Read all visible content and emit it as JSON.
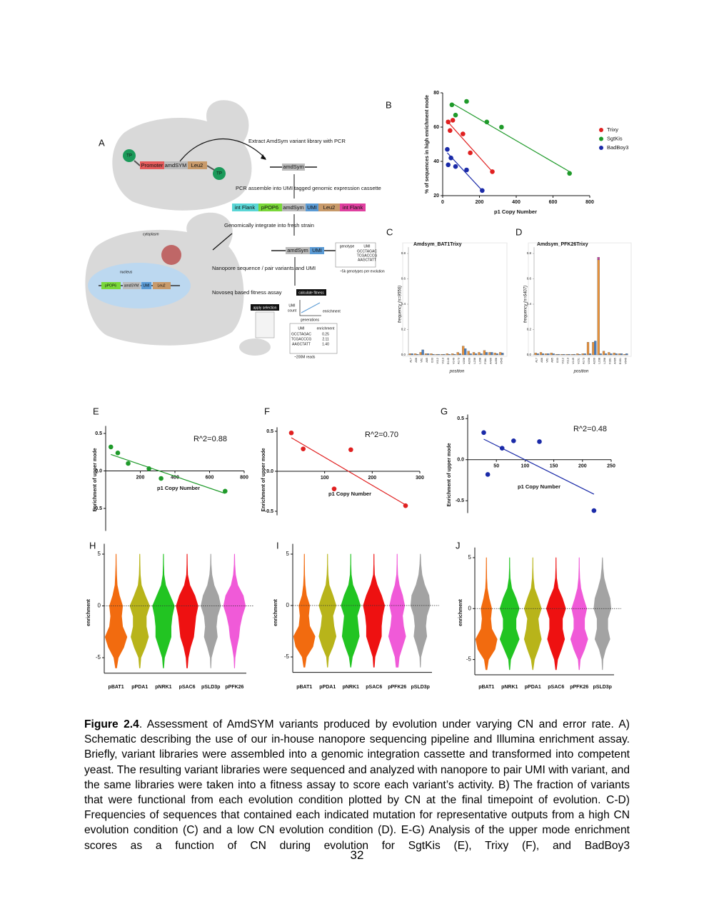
{
  "schematic": {
    "panel": "A",
    "extract": "Extract AmdSym variant library with PCR",
    "tp": "TP",
    "promoter": "Promoter",
    "amdsym": "amdSYM",
    "leu2": "Leu2",
    "amdsym_product": "amdSym",
    "pcr_assemble": "PCR assemble into UMI tagged genomic expression cassette",
    "cassette": [
      "int Flank",
      "pPOP6",
      "amdSym",
      "UMI",
      "Leu2",
      "int Flank"
    ],
    "integrate": "Genomically integrate into fresh strain",
    "cytoplasm": "cytoplasm",
    "nucleus": "nucleus",
    "nuclear_cassette": [
      "pPOP6",
      "amdSYM",
      "UMI",
      "Leu2"
    ],
    "pair": [
      "amdSym",
      "UMI"
    ],
    "genotype_table": {
      "headers": [
        "genotype",
        "UMI"
      ],
      "umis": [
        "GCCTAGAC",
        "TCGACCCG",
        "AAGCTATT"
      ]
    },
    "genotypes_note": "~5k genotypes per evolution",
    "nanopore": "Nanopore sequence / pair variants and UMI",
    "novoseq": "Novoseq based fitness assay",
    "calculate": "calculate fitness",
    "apply": "apply selection",
    "umi_count": [
      "UMI",
      "count"
    ],
    "generations": "generations",
    "enrichment": "enrichment",
    "fitness_table": {
      "headers": [
        "UMI",
        "enrichment"
      ],
      "rows": [
        [
          "GCCTAGAC",
          "0.25"
        ],
        [
          "TCGACCCG",
          "2.11"
        ],
        [
          "AAGCTATT",
          "1.40"
        ]
      ]
    },
    "reads": "~200M reads"
  },
  "chart_data": [
    {
      "type": "scatter",
      "panel": "B",
      "xlabel": "p1 Copy Number",
      "ylabel": "% of sequences in high enrichment mode",
      "xlim": [
        0,
        800
      ],
      "ylim": [
        20,
        80
      ],
      "xticks": [
        0,
        200,
        400,
        600,
        800
      ],
      "yticks": [
        20,
        40,
        60,
        80
      ],
      "legend": "right",
      "series": [
        {
          "name": "Trixy",
          "color": "#e02020",
          "x": [
            30,
            40,
            55,
            110,
            150,
            270
          ],
          "values": [
            63,
            58,
            64,
            56,
            45,
            34
          ],
          "fit": {
            "x": [
              20,
              270
            ],
            "y": [
              64,
              34
            ]
          }
        },
        {
          "name": "SgtKis",
          "color": "#1f9a2a",
          "x": [
            50,
            70,
            130,
            240,
            320,
            690
          ],
          "values": [
            73,
            67,
            75,
            63,
            60,
            33
          ],
          "fit": {
            "x": [
              50,
              690
            ],
            "y": [
              74,
              34
            ]
          }
        },
        {
          "name": "BadBoy3",
          "color": "#1a2aa8",
          "x": [
            25,
            30,
            45,
            70,
            130,
            215
          ],
          "values": [
            47,
            38,
            42,
            37,
            35,
            23
          ],
          "fit": {
            "x": [
              25,
              215
            ],
            "y": [
              45,
              23
            ]
          }
        }
      ]
    },
    {
      "type": "bar",
      "panel": "C",
      "title": "Amdsym_BAT1Trixy",
      "ylabel": "frequency (n=9556)",
      "xlabel": "position",
      "ylim": [
        0,
        0.85
      ],
      "yticks": [
        {
          "value": 0,
          "label": "0.0"
        },
        0.2,
        0.4,
        0.6,
        0.8
      ],
      "categories": [
        "A17",
        "A56",
        "V61",
        "A65",
        "I103",
        "V112",
        "V113",
        "D145",
        "V149",
        "A173",
        "V208",
        "A209",
        "L238",
        "L298",
        "F281",
        "A495",
        "A496",
        "V545"
      ],
      "series": [
        {
          "color": "#e8913a",
          "values": [
            0.01,
            0.01,
            0.02,
            0.01,
            0.01,
            0.005,
            0.005,
            0.01,
            0.01,
            0.02,
            0.07,
            0.03,
            0.02,
            0.02,
            0.035,
            0.02,
            0.015,
            0.02
          ]
        },
        {
          "color": "#4a7fc1",
          "values": [
            0.01,
            0.005,
            0.04,
            0.01,
            0.005,
            0.005,
            0.005,
            0.005,
            0.005,
            0.01,
            0.05,
            0.01,
            0.01,
            0.01,
            0.02,
            0.02,
            0.01,
            0.015
          ]
        }
      ]
    },
    {
      "type": "bar",
      "panel": "D",
      "title": "Amdsym_PFK26Trixy",
      "ylabel": "frequency (n=6407)",
      "xlabel": "position",
      "ylim": [
        0,
        0.85
      ],
      "yticks": [
        {
          "value": 0,
          "label": "0.0"
        },
        0.2,
        0.4,
        0.6,
        0.8
      ],
      "categories": [
        "A17",
        "A56",
        "V61",
        "A65",
        "I103",
        "V112",
        "V113",
        "V149",
        "V151",
        "A173",
        "V208",
        "A209",
        "L238",
        "L298",
        "F281",
        "A495",
        "E491",
        "V545"
      ],
      "series": [
        {
          "color": "#e8913a",
          "values": [
            0.015,
            0.02,
            0.01,
            0.015,
            0.005,
            0.005,
            0.005,
            0.005,
            0.01,
            0.01,
            0.1,
            0.1,
            0.75,
            0.03,
            0.02,
            0.015,
            0.01,
            0.005
          ]
        },
        {
          "color": "#4a7fc1",
          "values": [
            0.01,
            0.01,
            0.01,
            0.01,
            0.005,
            0.005,
            0.005,
            0.005,
            0.005,
            0.01,
            0.01,
            0.11,
            0.01,
            0.01,
            0.01,
            0.01,
            0.01,
            0.01
          ]
        },
        {
          "color": "#c040a0",
          "stacked_on": 0,
          "values": [
            null,
            null,
            null,
            null,
            null,
            null,
            null,
            null,
            null,
            null,
            null,
            null,
            0.02,
            null,
            null,
            null,
            null,
            null
          ]
        }
      ]
    },
    {
      "type": "scatter",
      "panel": "E",
      "annotation": "R^2=0.88",
      "xlabel": "p1 Copy Number",
      "ylabel": "Enrichment of upper mode",
      "axes_cross_at_zero": true,
      "xlim": [
        0,
        800
      ],
      "ylim": [
        -0.8,
        0.6
      ],
      "xticks": [
        200,
        400,
        600,
        800
      ],
      "yticks": [
        -0.5,
        {
          "value": 0,
          "label": "0.0"
        },
        0.5
      ],
      "series": [
        {
          "color": "#1f9a2a",
          "x": [
            30,
            70,
            130,
            250,
            320,
            690
          ],
          "values": [
            0.32,
            0.24,
            0.1,
            0.03,
            -0.1,
            -0.27
          ],
          "fit": {
            "x": [
              30,
              690
            ],
            "y": [
              0.22,
              -0.3
            ]
          }
        }
      ]
    },
    {
      "type": "scatter",
      "panel": "F",
      "annotation": "R^2=0.70",
      "xlabel": "p1 Copy Number",
      "ylabel": "Enrichment of upper mode",
      "axes_cross_at_zero": true,
      "xlim": [
        0,
        300
      ],
      "ylim": [
        -0.55,
        0.55
      ],
      "xticks": [
        100,
        200,
        300
      ],
      "yticks": [
        -0.5,
        {
          "value": 0,
          "label": "0.0"
        },
        0.5
      ],
      "series": [
        {
          "color": "#e02020",
          "x": [
            30,
            55,
            155,
            120,
            270
          ],
          "values": [
            0.48,
            0.28,
            0.27,
            -0.22,
            -0.43
          ],
          "fit": {
            "x": [
              30,
              270
            ],
            "y": [
              0.42,
              -0.42
            ]
          }
        }
      ]
    },
    {
      "type": "scatter",
      "panel": "G",
      "annotation": "R^2=0.48",
      "xlabel": "p1 Copy Number",
      "ylabel": "Enrichment of upper mode",
      "axes_cross_at_zero": true,
      "xlim": [
        0,
        250
      ],
      "ylim": [
        -0.65,
        0.55
      ],
      "xticks": [
        50,
        100,
        150,
        200,
        250
      ],
      "yticks": [
        -0.5,
        {
          "value": 0,
          "label": "0.0"
        },
        0.5
      ],
      "series": [
        {
          "color": "#1a2aa8",
          "x": [
            28,
            35,
            60,
            80,
            125,
            220
          ],
          "values": [
            0.33,
            -0.18,
            0.14,
            0.23,
            0.22,
            -0.62
          ],
          "fit": {
            "x": [
              28,
              220
            ],
            "y": [
              0.25,
              -0.42
            ]
          }
        }
      ]
    },
    {
      "type": "violin",
      "panel": "H",
      "ylabel": "enrichment",
      "ylim": [
        -6.5,
        6
      ],
      "yticks": [
        -5,
        0,
        5
      ],
      "zero_line": true,
      "levels": [
        -6,
        -5,
        -4,
        -3,
        -2,
        -1,
        0,
        1,
        2,
        3,
        4,
        5
      ],
      "categories": [
        "pBAT1",
        "pPDA1",
        "pNRK1",
        "pSAC6",
        "pSLD3p",
        "pPFK26"
      ],
      "colors": [
        "#f26b0f",
        "#b8b41a",
        "#22c422",
        "#ee1111",
        "#a3a3a3",
        "#f05ad8"
      ],
      "density": [
        [
          0.05,
          0.2,
          0.7,
          1,
          0.6,
          0.5,
          0.6,
          0.3,
          0.1,
          0.05,
          0.02,
          0.01
        ],
        [
          0.02,
          0.1,
          0.5,
          0.8,
          0.6,
          0.6,
          0.9,
          0.5,
          0.15,
          0.05,
          0.02,
          0.01
        ],
        [
          0.02,
          0.1,
          0.4,
          0.7,
          0.7,
          0.8,
          1,
          0.6,
          0.2,
          0.05,
          0.02,
          0.01
        ],
        [
          0.03,
          0.1,
          0.3,
          0.6,
          0.7,
          0.8,
          1,
          0.7,
          0.25,
          0.05,
          0.02,
          0.01
        ],
        [
          0.01,
          0.05,
          0.3,
          0.6,
          0.5,
          0.6,
          0.9,
          0.7,
          0.3,
          0.1,
          0.03,
          0.01
        ],
        [
          0.01,
          0.05,
          0.2,
          0.4,
          0.5,
          0.7,
          1,
          0.8,
          0.3,
          0.1,
          0.03,
          0.01
        ]
      ]
    },
    {
      "type": "violin",
      "panel": "I",
      "ylabel": "enrichment",
      "ylim": [
        -6.5,
        6
      ],
      "yticks": [
        -5,
        0,
        5
      ],
      "zero_line": true,
      "levels": [
        -6,
        -5,
        -4,
        -3,
        -2,
        -1,
        0,
        1,
        2,
        3,
        4,
        5
      ],
      "categories": [
        "pBAT1",
        "pPDA1",
        "pNRK1",
        "pSAC6",
        "pPFK26",
        "pSLD3p"
      ],
      "colors": [
        "#f26b0f",
        "#b8b41a",
        "#22c422",
        "#ee1111",
        "#f05ad8",
        "#a3a3a3"
      ],
      "density": [
        [
          0.05,
          0.2,
          0.8,
          1,
          0.5,
          0.4,
          0.5,
          0.2,
          0.08,
          0.03,
          0.02,
          0.01
        ],
        [
          0.02,
          0.1,
          0.5,
          0.8,
          0.6,
          0.5,
          0.8,
          0.5,
          0.15,
          0.05,
          0.02,
          0.01
        ],
        [
          0.02,
          0.15,
          0.5,
          0.8,
          0.7,
          0.6,
          0.9,
          0.6,
          0.2,
          0.05,
          0.02,
          0.01
        ],
        [
          0.03,
          0.1,
          0.4,
          0.7,
          0.7,
          0.8,
          1,
          0.7,
          0.3,
          0.05,
          0.02,
          0.01
        ],
        [
          0.1,
          0.2,
          0.5,
          0.8,
          0.6,
          0.5,
          0.7,
          0.5,
          0.2,
          0.05,
          0.02,
          0.01
        ],
        [
          0.01,
          0.05,
          0.3,
          0.6,
          0.5,
          0.6,
          0.9,
          0.8,
          0.4,
          0.15,
          0.05,
          0.01
        ]
      ]
    },
    {
      "type": "violin",
      "panel": "J",
      "ylabel": "enrichment",
      "ylim": [
        -6.5,
        6
      ],
      "yticks": [
        -5,
        0,
        5
      ],
      "zero_line": true,
      "levels": [
        -6,
        -5,
        -4,
        -3,
        -2,
        -1,
        0,
        1,
        2,
        3,
        4,
        5
      ],
      "categories": [
        "pBAT1",
        "pNRK1",
        "pPDA1",
        "pSAC6",
        "pPFK26",
        "pSLD3p"
      ],
      "colors": [
        "#f26b0f",
        "#22c422",
        "#b8b41a",
        "#ee1111",
        "#f05ad8",
        "#a3a3a3"
      ],
      "density": [
        [
          0.05,
          0.2,
          0.8,
          1,
          0.5,
          0.4,
          0.5,
          0.25,
          0.08,
          0.03,
          0.02,
          0.01
        ],
        [
          0.02,
          0.1,
          0.5,
          0.9,
          0.6,
          0.6,
          0.9,
          0.6,
          0.2,
          0.05,
          0.02,
          0.01
        ],
        [
          0.02,
          0.15,
          0.5,
          0.8,
          0.6,
          0.5,
          0.8,
          0.5,
          0.15,
          0.05,
          0.02,
          0.01
        ],
        [
          0.03,
          0.15,
          0.5,
          0.8,
          0.6,
          0.6,
          0.9,
          0.6,
          0.2,
          0.05,
          0.02,
          0.01
        ],
        [
          0.02,
          0.1,
          0.5,
          0.8,
          0.5,
          0.5,
          0.7,
          0.4,
          0.15,
          0.05,
          0.02,
          0.01
        ],
        [
          0.01,
          0.05,
          0.3,
          0.7,
          0.5,
          0.5,
          0.8,
          0.7,
          0.4,
          0.15,
          0.05,
          0.01
        ]
      ]
    }
  ],
  "caption": {
    "label": "Figure 2.4",
    "text": ". Assessment of AmdSYM variants produced by evolution under varying CN and error rate. A) Schematic describing the use of our in-house nanopore sequencing pipeline and Illumina enrichment assay. Briefly, variant libraries were assembled into a genomic integration cassette and transformed into competent yeast. The resulting variant libraries were sequenced and analyzed with nanopore to pair UMI with variant, and the same libraries were taken into a fitness assay to score each variant’s activity. B) The fraction of variants that were functional from each evolution condition plotted by CN at the final timepoint of evolution. C-D) Frequencies of sequences that contained each indicated mutation for representative outputs from a high CN evolution condition (C) and a low CN evolution condition (D). E-G) Analysis of the upper mode enrichment scores as a function of CN during evolution for SgtKis (E), Trixy (F), and BadBoy3"
  },
  "page_number": "32"
}
